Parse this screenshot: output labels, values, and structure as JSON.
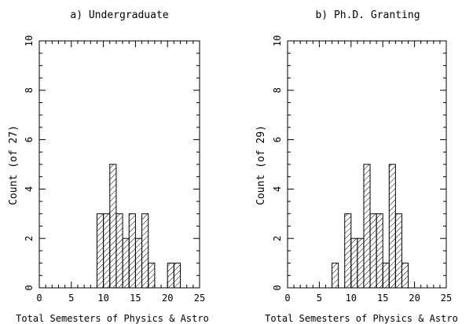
{
  "chart_data": [
    {
      "type": "bar",
      "title": "a) Undergraduate",
      "xlabel": "Total Semesters of Physics & Astro",
      "ylabel": "Count (of 27)",
      "xlim": [
        0,
        25
      ],
      "ylim": [
        0,
        10
      ],
      "xticks": [
        "0",
        "5",
        "10",
        "15",
        "20",
        "25"
      ],
      "yticks": [
        "0",
        "2",
        "4",
        "6",
        "8",
        "10"
      ],
      "bin_width": 1,
      "bins": [
        {
          "x": 9,
          "value": 3
        },
        {
          "x": 10,
          "value": 3
        },
        {
          "x": 11,
          "value": 5
        },
        {
          "x": 12,
          "value": 3
        },
        {
          "x": 13,
          "value": 2
        },
        {
          "x": 14,
          "value": 3
        },
        {
          "x": 15,
          "value": 2
        },
        {
          "x": 16,
          "value": 3
        },
        {
          "x": 17,
          "value": 1
        },
        {
          "x": 20,
          "value": 1
        },
        {
          "x": 21,
          "value": 1
        }
      ]
    },
    {
      "type": "bar",
      "title": "b) Ph.D. Granting",
      "xlabel": "Total Semesters of Physics & Astro",
      "ylabel": "Count (of 29)",
      "xlim": [
        0,
        25
      ],
      "ylim": [
        0,
        10
      ],
      "xticks": [
        "0",
        "5",
        "10",
        "15",
        "20",
        "25"
      ],
      "yticks": [
        "0",
        "2",
        "4",
        "6",
        "8",
        "10"
      ],
      "bin_width": 1,
      "bins": [
        {
          "x": 7,
          "value": 1
        },
        {
          "x": 9,
          "value": 3
        },
        {
          "x": 10,
          "value": 2
        },
        {
          "x": 11,
          "value": 2
        },
        {
          "x": 12,
          "value": 5
        },
        {
          "x": 13,
          "value": 3
        },
        {
          "x": 14,
          "value": 3
        },
        {
          "x": 15,
          "value": 1
        },
        {
          "x": 16,
          "value": 5
        },
        {
          "x": 17,
          "value": 3
        },
        {
          "x": 18,
          "value": 1
        }
      ]
    }
  ]
}
